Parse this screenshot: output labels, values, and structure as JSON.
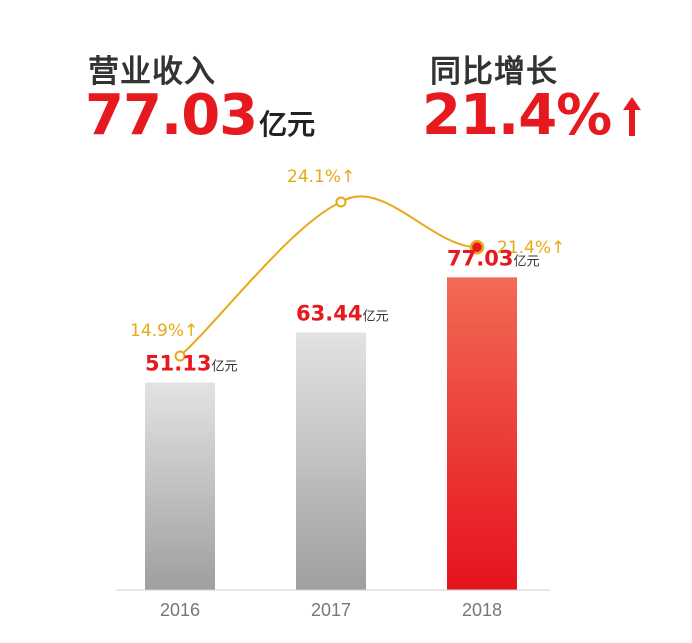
{
  "summary": {
    "revenue_label": "营业收入",
    "revenue_value": "77.03",
    "revenue_unit": "亿元",
    "growth_label": "同比增长",
    "growth_value": "21.4%",
    "growth_arrow_icon": "up-arrow-icon"
  },
  "colors": {
    "headline": "#333333",
    "accent_red": "#e6191f",
    "gray_bar_top": "#e3e3e3",
    "gray_bar_bottom": "#9f9f9f",
    "red_bar_top": "#f26a55",
    "red_bar_bottom": "#e6121e",
    "growth_line": "#e9a817",
    "axis": "#cfcfcf",
    "tick_text": "#777777"
  },
  "chart_data": {
    "type": "bar",
    "categories": [
      "2016",
      "2017",
      "2018"
    ],
    "values": [
      51.13,
      63.44,
      77.03
    ],
    "unit": "亿元",
    "highlight_index": 2,
    "ylim": [
      0,
      85
    ],
    "grid": false,
    "line_series": {
      "values": [
        14.9,
        24.1,
        21.4
      ],
      "labels": [
        "14.9%↑",
        "24.1%↑",
        "21.4%↑"
      ]
    }
  }
}
